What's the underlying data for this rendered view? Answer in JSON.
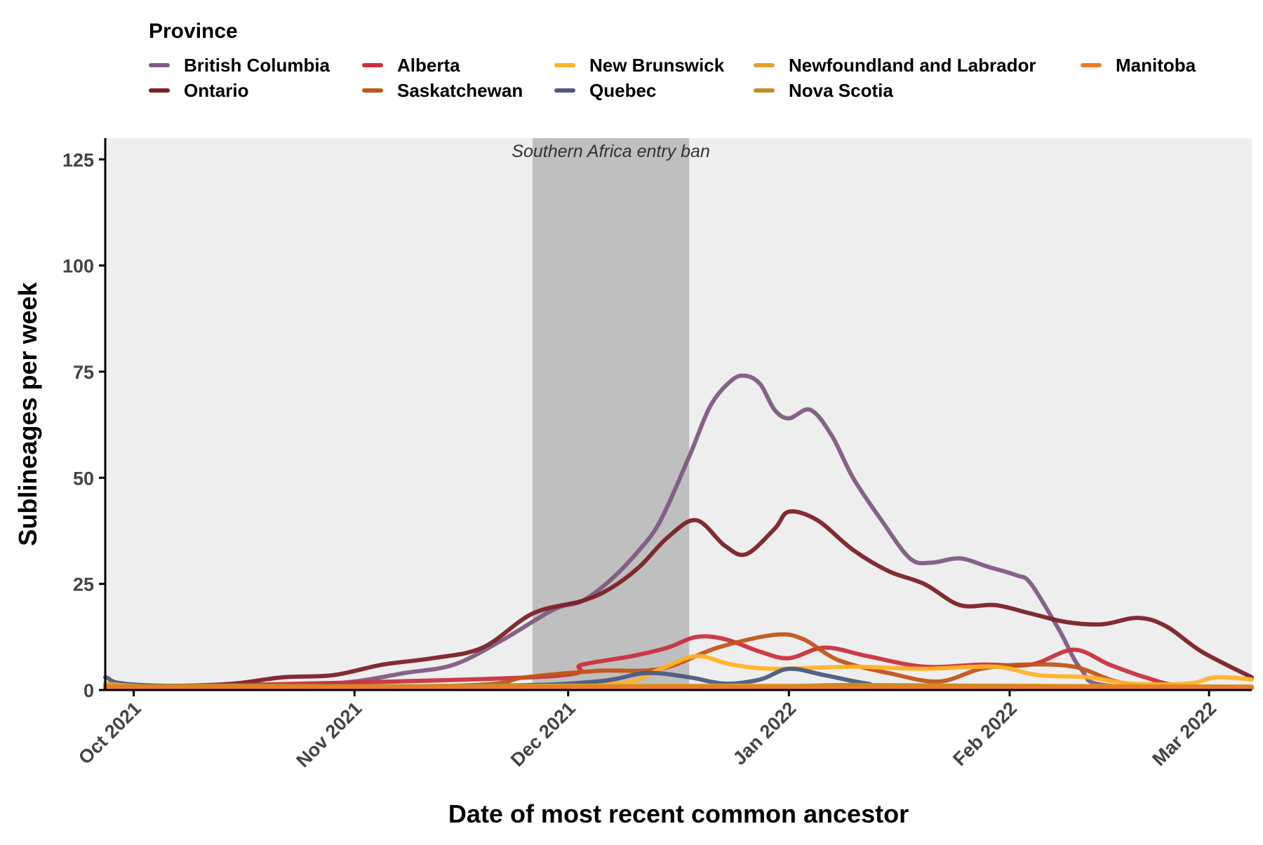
{
  "chart_data": {
    "type": "line",
    "title": "",
    "xlabel": "Date of most recent common ancestor",
    "ylabel": "Sublineages per week",
    "ylim": [
      0,
      130
    ],
    "yticks": [
      0,
      25,
      50,
      75,
      100,
      125
    ],
    "xlim": [
      "2021-09-27",
      "2022-03-07"
    ],
    "xticks": [
      {
        "date": "2021-10-01",
        "label": "Oct 2021"
      },
      {
        "date": "2021-11-01",
        "label": "Nov 2021"
      },
      {
        "date": "2021-12-01",
        "label": "Dec 2021"
      },
      {
        "date": "2022-01-01",
        "label": "Jan 2022"
      },
      {
        "date": "2022-02-01",
        "label": "Feb 2022"
      },
      {
        "date": "2022-03-01",
        "label": "Mar 2022"
      }
    ],
    "grid": false,
    "panel_background": "#eeeeee",
    "legend": {
      "title": "Province",
      "placement": "top"
    },
    "annotation": {
      "label": "Southern Africa entry ban",
      "start": "2021-11-26",
      "end": "2021-12-18",
      "color": "#bfbfbf"
    },
    "series": [
      {
        "name": "British Columbia",
        "color": "#7f5a83",
        "points": [
          [
            "2021-09-27",
            1
          ],
          [
            "2021-10-10",
            0.5
          ],
          [
            "2021-10-25",
            1.2
          ],
          [
            "2021-11-01",
            2
          ],
          [
            "2021-11-08",
            4
          ],
          [
            "2021-11-15",
            6
          ],
          [
            "2021-11-22",
            12
          ],
          [
            "2021-11-29",
            19
          ],
          [
            "2021-12-03",
            21
          ],
          [
            "2021-12-07",
            26
          ],
          [
            "2021-12-11",
            33
          ],
          [
            "2021-12-14",
            40
          ],
          [
            "2021-12-18",
            55
          ],
          [
            "2021-12-21",
            67
          ],
          [
            "2021-12-24",
            73
          ],
          [
            "2021-12-26",
            74
          ],
          [
            "2021-12-28",
            72
          ],
          [
            "2021-12-30",
            66
          ],
          [
            "2022-01-01",
            64
          ],
          [
            "2022-01-04",
            66
          ],
          [
            "2022-01-07",
            60
          ],
          [
            "2022-01-10",
            50
          ],
          [
            "2022-01-14",
            40
          ],
          [
            "2022-01-18",
            31
          ],
          [
            "2022-01-21",
            30
          ],
          [
            "2022-01-25",
            31
          ],
          [
            "2022-01-29",
            29
          ],
          [
            "2022-02-02",
            27
          ],
          [
            "2022-02-04",
            25
          ],
          [
            "2022-02-08",
            14
          ],
          [
            "2022-02-11",
            5
          ],
          [
            "2022-02-15",
            1
          ],
          [
            "2022-03-07",
            0.5
          ]
        ]
      },
      {
        "name": "Ontario",
        "color": "#7b2027",
        "points": [
          [
            "2021-09-27",
            1
          ],
          [
            "2021-10-08",
            1
          ],
          [
            "2021-10-15",
            1.5
          ],
          [
            "2021-10-22",
            3
          ],
          [
            "2021-10-29",
            3.5
          ],
          [
            "2021-11-05",
            6
          ],
          [
            "2021-11-12",
            7.5
          ],
          [
            "2021-11-19",
            10
          ],
          [
            "2021-11-26",
            18
          ],
          [
            "2021-12-03",
            21
          ],
          [
            "2021-12-07",
            24
          ],
          [
            "2021-12-11",
            29
          ],
          [
            "2021-12-15",
            36
          ],
          [
            "2021-12-19",
            40
          ],
          [
            "2021-12-23",
            34
          ],
          [
            "2021-12-26",
            32
          ],
          [
            "2021-12-30",
            38
          ],
          [
            "2022-01-01",
            42
          ],
          [
            "2022-01-05",
            40
          ],
          [
            "2022-01-10",
            33
          ],
          [
            "2022-01-15",
            28
          ],
          [
            "2022-01-20",
            25
          ],
          [
            "2022-01-25",
            20
          ],
          [
            "2022-01-30",
            20
          ],
          [
            "2022-02-04",
            18
          ],
          [
            "2022-02-09",
            16
          ],
          [
            "2022-02-14",
            15.5
          ],
          [
            "2022-02-19",
            17
          ],
          [
            "2022-02-23",
            15
          ],
          [
            "2022-02-28",
            9
          ],
          [
            "2022-03-07",
            3
          ]
        ]
      },
      {
        "name": "Alberta",
        "color": "#c9303e",
        "points": [
          [
            "2021-09-27",
            0.5
          ],
          [
            "2021-11-26",
            3
          ],
          [
            "2021-12-03",
            6
          ],
          [
            "2021-12-10",
            8
          ],
          [
            "2021-12-15",
            10
          ],
          [
            "2021-12-19",
            12.5
          ],
          [
            "2021-12-23",
            12
          ],
          [
            "2021-12-28",
            9
          ],
          [
            "2022-01-01",
            7.5
          ],
          [
            "2022-01-06",
            10
          ],
          [
            "2022-01-12",
            8
          ],
          [
            "2022-01-20",
            5.5
          ],
          [
            "2022-01-28",
            6
          ],
          [
            "2022-02-04",
            6
          ],
          [
            "2022-02-10",
            9.5
          ],
          [
            "2022-02-15",
            6
          ],
          [
            "2022-02-20",
            3
          ],
          [
            "2022-02-25",
            1
          ],
          [
            "2022-03-07",
            0.5
          ]
        ]
      },
      {
        "name": "Saskatchewan",
        "color": "#c2541a",
        "points": [
          [
            "2021-09-27",
            0.5
          ],
          [
            "2021-11-15",
            1
          ],
          [
            "2021-11-25",
            3
          ],
          [
            "2021-12-05",
            4.5
          ],
          [
            "2021-12-14",
            5
          ],
          [
            "2021-12-22",
            10
          ],
          [
            "2021-12-30",
            13
          ],
          [
            "2022-01-03",
            12
          ],
          [
            "2022-01-08",
            7
          ],
          [
            "2022-01-15",
            4
          ],
          [
            "2022-01-22",
            2
          ],
          [
            "2022-01-28",
            5
          ],
          [
            "2022-02-03",
            6
          ],
          [
            "2022-02-10",
            5.5
          ],
          [
            "2022-02-16",
            2
          ],
          [
            "2022-02-22",
            0.8
          ],
          [
            "2022-03-07",
            0.5
          ]
        ]
      },
      {
        "name": "New Brunswick",
        "color": "#ffb128",
        "points": [
          [
            "2021-09-27",
            0.5
          ],
          [
            "2021-11-20",
            1
          ],
          [
            "2021-12-08",
            1.5
          ],
          [
            "2021-12-14",
            5
          ],
          [
            "2021-12-19",
            8
          ],
          [
            "2021-12-24",
            6
          ],
          [
            "2021-12-30",
            5
          ],
          [
            "2022-01-10",
            5.5
          ],
          [
            "2022-01-20",
            5
          ],
          [
            "2022-01-30",
            5.5
          ],
          [
            "2022-02-05",
            3.5
          ],
          [
            "2022-02-12",
            3
          ],
          [
            "2022-02-18",
            1.5
          ],
          [
            "2022-02-26",
            1.5
          ],
          [
            "2022-03-02",
            3
          ],
          [
            "2022-03-07",
            2.5
          ]
        ]
      },
      {
        "name": "Quebec",
        "color": "#4b5a80",
        "points": [
          [
            "2021-09-27",
            3
          ],
          [
            "2021-10-05",
            1
          ],
          [
            "2021-11-20",
            1
          ],
          [
            "2021-12-05",
            2
          ],
          [
            "2021-12-12",
            4
          ],
          [
            "2021-12-18",
            3
          ],
          [
            "2021-12-23",
            1.5
          ],
          [
            "2021-12-28",
            2.5
          ],
          [
            "2022-01-01",
            5
          ],
          [
            "2022-01-06",
            3.5
          ],
          [
            "2022-01-12",
            1.5
          ],
          [
            "2022-01-18",
            0.5
          ],
          [
            "2022-03-07",
            0.5
          ]
        ]
      },
      {
        "name": "Newfoundland and Labrador",
        "color": "#e3a12b",
        "points": [
          [
            "2021-09-27",
            1.5
          ],
          [
            "2021-10-05",
            0.8
          ],
          [
            "2021-11-01",
            0.8
          ],
          [
            "2021-12-01",
            1
          ],
          [
            "2022-01-15",
            1
          ],
          [
            "2022-02-01",
            1
          ],
          [
            "2022-03-07",
            0.8
          ]
        ]
      },
      {
        "name": "Nova Scotia",
        "color": "#c28e23",
        "points": [
          [
            "2021-09-27",
            0.8
          ],
          [
            "2021-10-15",
            1
          ],
          [
            "2021-11-15",
            0.8
          ],
          [
            "2021-12-20",
            0.8
          ],
          [
            "2022-01-01",
            0.8
          ],
          [
            "2022-01-10",
            1.2
          ],
          [
            "2022-02-10",
            0.8
          ],
          [
            "2022-03-07",
            0.8
          ]
        ]
      },
      {
        "name": "Manitoba",
        "color": "#ef7a28",
        "points": [
          [
            "2021-09-27",
            0.5
          ],
          [
            "2022-03-07",
            0.5
          ]
        ]
      }
    ]
  }
}
